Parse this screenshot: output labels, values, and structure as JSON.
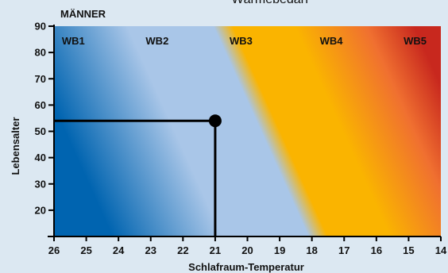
{
  "chart_data": {
    "type": "area",
    "title": "Wärmebedarf",
    "subtitle": "MÄNNER",
    "xlabel": "Schlafraum-Temperatur",
    "ylabel": "Lebensalter",
    "x_reversed": true,
    "xlim": [
      26,
      14
    ],
    "ylim": [
      10,
      90
    ],
    "x_ticks": [
      26,
      25,
      24,
      23,
      22,
      21,
      20,
      19,
      18,
      17,
      16,
      15,
      14
    ],
    "y_ticks": [
      20,
      30,
      40,
      50,
      60,
      70,
      80,
      90
    ],
    "grid": false,
    "bands": [
      {
        "label": "WB1",
        "label_x": 25.4
      },
      {
        "label": "WB2",
        "label_x": 22.8
      },
      {
        "label": "WB3",
        "label_x": 20.2
      },
      {
        "label": "WB4",
        "label_x": 17.4
      },
      {
        "label": "WB5",
        "label_x": 14.8
      }
    ],
    "band_label_y": 83,
    "marker": {
      "x": 21,
      "y": 54
    },
    "colors": {
      "wb1": "#0064b0",
      "wb2": "#a9c6e8",
      "wb3": "#fab400",
      "wb4": "#f07030",
      "wb5": "#c8281e",
      "axis": "#000000"
    }
  }
}
